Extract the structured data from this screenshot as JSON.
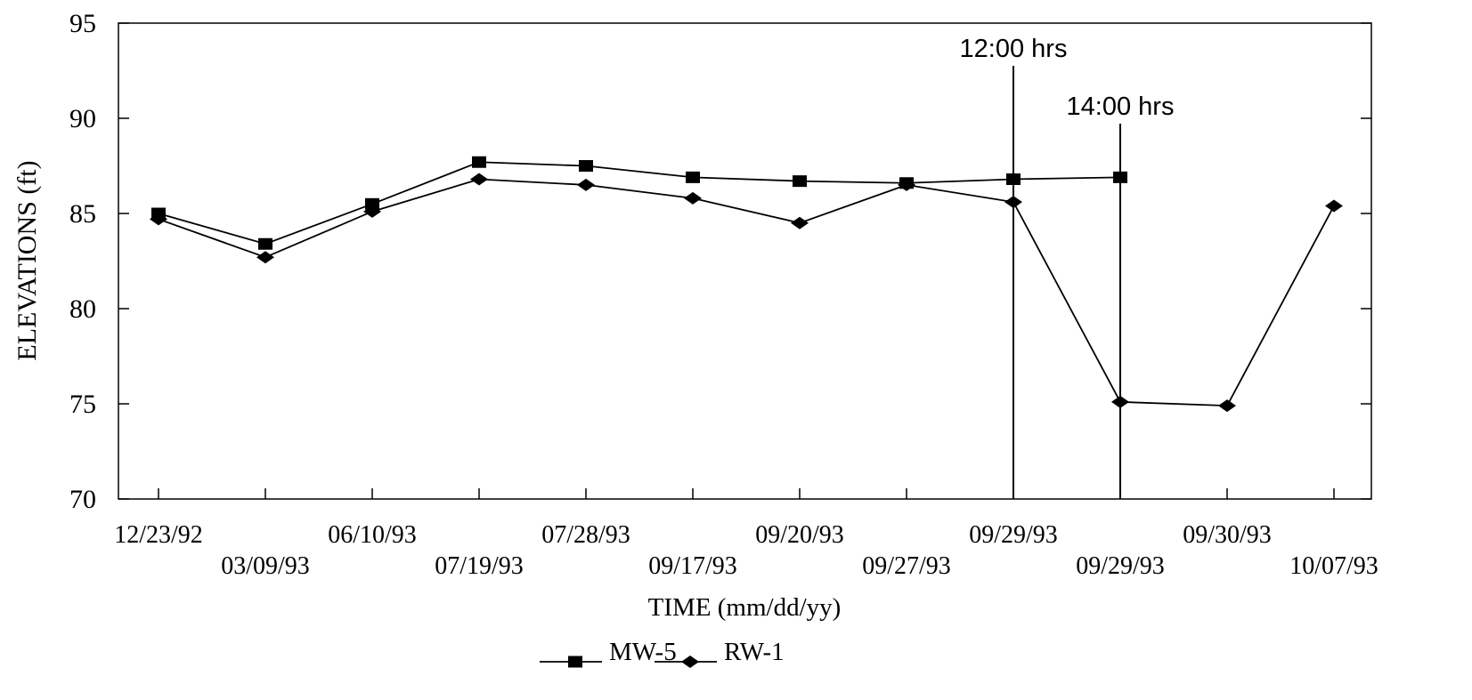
{
  "chart_data": {
    "type": "line",
    "title": "",
    "xlabel": "TIME (mm/dd/yy)",
    "ylabel": "ELEVATIONS (ft)",
    "ylim": [
      70,
      95
    ],
    "yticks": [
      "70",
      "75",
      "80",
      "85",
      "90",
      "95"
    ],
    "categories": [
      "12/23/92",
      "03/09/93",
      "06/10/93",
      "07/19/93",
      "07/28/93",
      "09/17/93",
      "09/20/93",
      "09/27/93",
      "09/29/93",
      "09/29/93",
      "09/30/93",
      "10/07/93"
    ],
    "grid": false,
    "legend_position": "bottom-center",
    "series": [
      {
        "name": "MW-5",
        "marker": "square",
        "values": [
          85.0,
          83.4,
          85.5,
          87.7,
          87.5,
          86.9,
          86.7,
          86.6,
          86.8,
          86.9,
          null,
          null
        ]
      },
      {
        "name": "RW-1",
        "marker": "diamond",
        "values": [
          84.7,
          82.7,
          85.1,
          86.8,
          86.5,
          85.8,
          84.5,
          86.5,
          85.6,
          75.1,
          74.9,
          85.4
        ]
      }
    ],
    "annotations": [
      {
        "text": "12:00 hrs",
        "category_index": 8
      },
      {
        "text": "14:00 hrs",
        "category_index": 9
      }
    ],
    "colors": {
      "line": "#000000",
      "background": "#ffffff"
    }
  }
}
